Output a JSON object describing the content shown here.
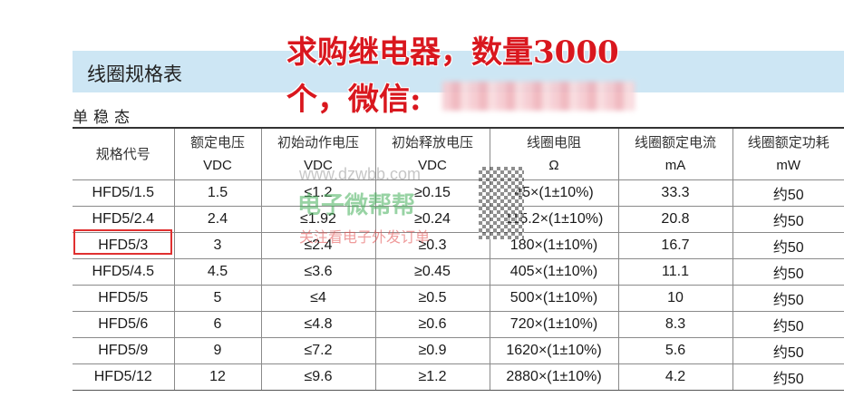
{
  "title": "线圈规格表",
  "overlay": {
    "line1": "求购继电器，数量3000",
    "line2": "个，微信:"
  },
  "section": "单稳态",
  "headers": [
    {
      "zh": "规格代号",
      "unit": ""
    },
    {
      "zh": "额定电压",
      "unit": "VDC"
    },
    {
      "zh": "初始动作电压",
      "unit": "VDC"
    },
    {
      "zh": "初始释放电压",
      "unit": "VDC"
    },
    {
      "zh": "线圈电阻",
      "unit": "Ω"
    },
    {
      "zh": "线圈额定电流",
      "unit": "mA"
    },
    {
      "zh": "线圈额定功耗",
      "unit": "mW"
    }
  ],
  "rows": [
    [
      "HFD5/1.5",
      "1.5",
      "≤1.2",
      "≥0.15",
      "45×(1±10%)",
      "33.3",
      "约50"
    ],
    [
      "HFD5/2.4",
      "2.4",
      "≤1.92",
      "≥0.24",
      "115.2×(1±10%)",
      "20.8",
      "约50"
    ],
    [
      "HFD5/3",
      "3",
      "≤2.4",
      "≥0.3",
      "180×(1±10%)",
      "16.7",
      "约50"
    ],
    [
      "HFD5/4.5",
      "4.5",
      "≤3.6",
      "≥0.45",
      "405×(1±10%)",
      "11.1",
      "约50"
    ],
    [
      "HFD5/5",
      "5",
      "≤4",
      "≥0.5",
      "500×(1±10%)",
      "10",
      "约50"
    ],
    [
      "HFD5/6",
      "6",
      "≤4.8",
      "≥0.6",
      "720×(1±10%)",
      "8.3",
      "约50"
    ],
    [
      "HFD5/9",
      "9",
      "≤7.2",
      "≥0.9",
      "1620×(1±10%)",
      "5.6",
      "约50"
    ],
    [
      "HFD5/12",
      "12",
      "≤9.6",
      "≥1.2",
      "2880×(1±10%)",
      "4.2",
      "约50"
    ]
  ],
  "watermark": {
    "url": "www.dzwbb.com",
    "name": "电子微帮帮",
    "slogan": "关注看电子外发订单"
  },
  "colors": {
    "header_band": "#cde6f4",
    "overlay_text": "#d9171e",
    "highlight_box": "#e03030"
  }
}
